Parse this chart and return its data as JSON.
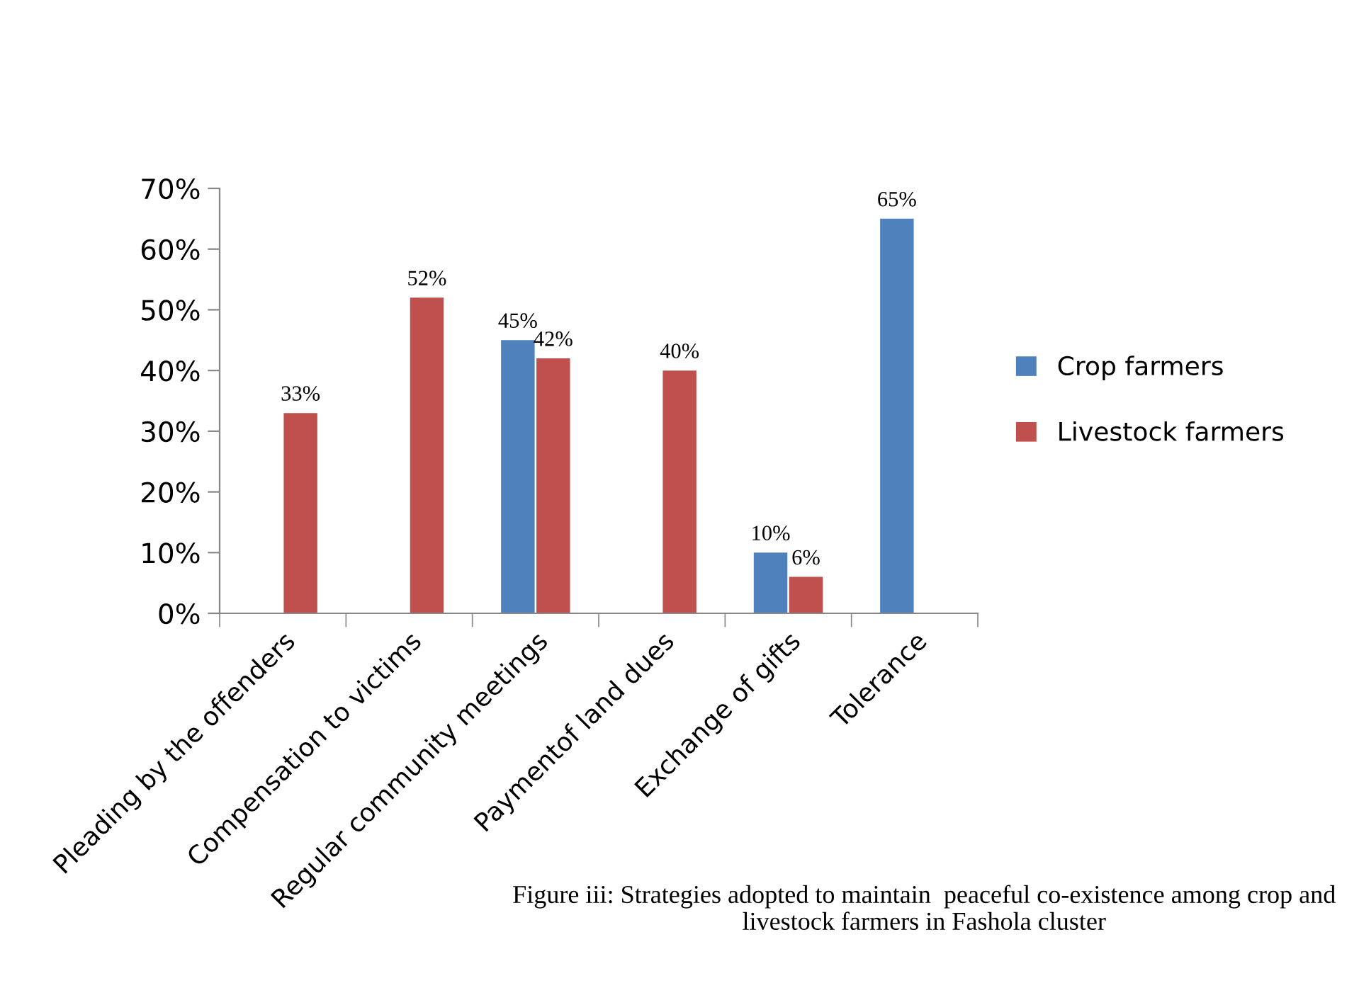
{
  "chart_data": {
    "type": "bar",
    "categories": [
      "Pleading by the offenders",
      "Compensation to victims",
      "Regular community meetings",
      "Paymentof land dues",
      "Exchange of gifts",
      "Tolerance"
    ],
    "series": [
      {
        "name": "Crop farmers",
        "color": "#4f81bd",
        "values": [
          null,
          null,
          45,
          null,
          10,
          65
        ],
        "value_labels": [
          null,
          null,
          "45%",
          null,
          "10%",
          "65%"
        ]
      },
      {
        "name": "Livestock farmers",
        "color": "#c0504d",
        "values": [
          33,
          52,
          42,
          40,
          6,
          null
        ],
        "value_labels": [
          "33%",
          "52%",
          "42%",
          "40%",
          "6%",
          null
        ]
      }
    ],
    "ylim": [
      0,
      70
    ],
    "yticks": [
      {
        "value": 0,
        "label": "0%"
      },
      {
        "value": 10,
        "label": "10%"
      },
      {
        "value": 20,
        "label": "20%"
      },
      {
        "value": 30,
        "label": "30%"
      },
      {
        "value": 40,
        "label": "40%"
      },
      {
        "value": 50,
        "label": "50%"
      },
      {
        "value": 60,
        "label": "60%"
      },
      {
        "value": 70,
        "label": "70%"
      }
    ],
    "grid": false,
    "legend": "right",
    "annotations": [
      "Figure iii: Strategies adopted to maintain  peaceful co-existence among crop and livestock farmers in Fashola cluster"
    ]
  }
}
